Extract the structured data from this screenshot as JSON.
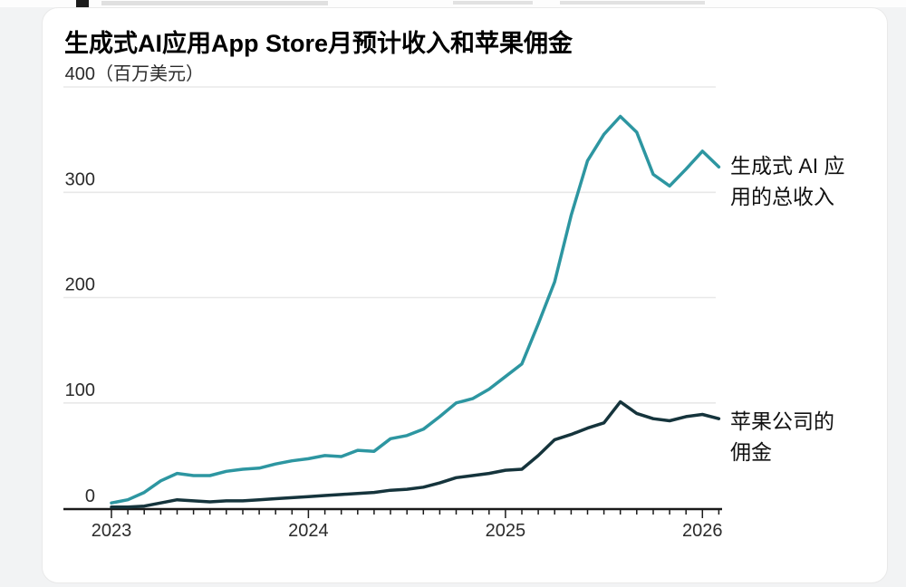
{
  "page": {
    "bottom_strip_color": "#f2f3f4",
    "card_color": "#ffffff"
  },
  "chart_data": {
    "type": "line",
    "title": "生成式AI应用App Store月预计收入和苹果佣金",
    "unit_label": "（百万美元）",
    "ylabel": "百万美元",
    "ylim": [
      0,
      400
    ],
    "yticks": [
      0,
      100,
      200,
      300,
      400
    ],
    "grid": "horizontal",
    "legend_position": "right",
    "x_tick_years": [
      "2023",
      "2024",
      "2025",
      "2026"
    ],
    "x": [
      "2023-01",
      "2023-02",
      "2023-03",
      "2023-04",
      "2023-05",
      "2023-06",
      "2023-07",
      "2023-08",
      "2023-09",
      "2023-10",
      "2023-11",
      "2023-12",
      "2024-01",
      "2024-02",
      "2024-03",
      "2024-04",
      "2024-05",
      "2024-06",
      "2024-07",
      "2024-08",
      "2024-09",
      "2024-10",
      "2024-11",
      "2024-12",
      "2025-01",
      "2025-02",
      "2025-03",
      "2025-04",
      "2025-05",
      "2025-06",
      "2025-07",
      "2025-08",
      "2025-09",
      "2025-10",
      "2025-11",
      "2025-12",
      "2026-01",
      "2026-02"
    ],
    "series": [
      {
        "name": "生成式 AI 应用的总收入",
        "color": "#2d96a1",
        "values": [
          5,
          8,
          15,
          26,
          33,
          31,
          31,
          35,
          37,
          38,
          42,
          45,
          47,
          50,
          49,
          55,
          54,
          66,
          69,
          75,
          87,
          100,
          104,
          113,
          125,
          137,
          175,
          215,
          278,
          330,
          355,
          372,
          357,
          317,
          306,
          322,
          339,
          324
        ]
      },
      {
        "name": "苹果公司的佣金",
        "color": "#15343c",
        "values": [
          1,
          1,
          2,
          5,
          8,
          7,
          6,
          7,
          7,
          8,
          9,
          10,
          11,
          12,
          13,
          14,
          15,
          17,
          18,
          20,
          24,
          29,
          31,
          33,
          36,
          37,
          50,
          65,
          70,
          76,
          81,
          101,
          90,
          85,
          83,
          87,
          89,
          85
        ]
      }
    ],
    "legend": [
      {
        "label": "生成式 AI 应\n用的总收入"
      },
      {
        "label": "苹果公司的\n佣金"
      }
    ]
  }
}
